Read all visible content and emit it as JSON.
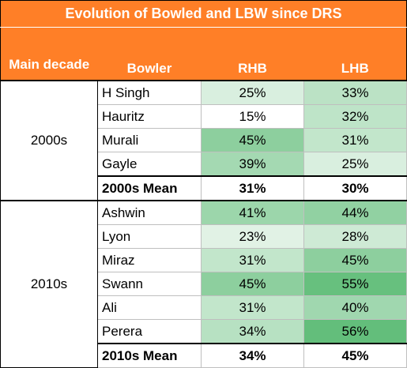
{
  "title": "Evolution of Bowled and LBW since DRS",
  "headers": {
    "decade": "Main decade",
    "bowler": "Bowler",
    "rhb": "RHB",
    "lhb": "LHB"
  },
  "colors": {
    "header": "#ff7f27",
    "low": "#ffffff",
    "high": "#63be7b"
  },
  "groups": [
    {
      "decade": "2000s",
      "rows": [
        {
          "bowler": "H Singh",
          "rhb": "25%",
          "lhb": "33%"
        },
        {
          "bowler": "Hauritz",
          "rhb": "15%",
          "lhb": "32%"
        },
        {
          "bowler": "Murali",
          "rhb": "45%",
          "lhb": "31%"
        },
        {
          "bowler": "Gayle",
          "rhb": "39%",
          "lhb": "25%"
        }
      ],
      "mean": {
        "bowler": "2000s Mean",
        "rhb": "31%",
        "lhb": "30%"
      }
    },
    {
      "decade": "2010s",
      "rows": [
        {
          "bowler": "Ashwin",
          "rhb": "41%",
          "lhb": "44%"
        },
        {
          "bowler": "Lyon",
          "rhb": "23%",
          "lhb": "28%"
        },
        {
          "bowler": "Miraz",
          "rhb": "31%",
          "lhb": "45%"
        },
        {
          "bowler": "Swann",
          "rhb": "45%",
          "lhb": "55%"
        },
        {
          "bowler": "Ali",
          "rhb": "31%",
          "lhb": "40%"
        },
        {
          "bowler": "Perera",
          "rhb": "34%",
          "lhb": "56%"
        }
      ],
      "mean": {
        "bowler": "2010s Mean",
        "rhb": "34%",
        "lhb": "45%"
      }
    }
  ]
}
